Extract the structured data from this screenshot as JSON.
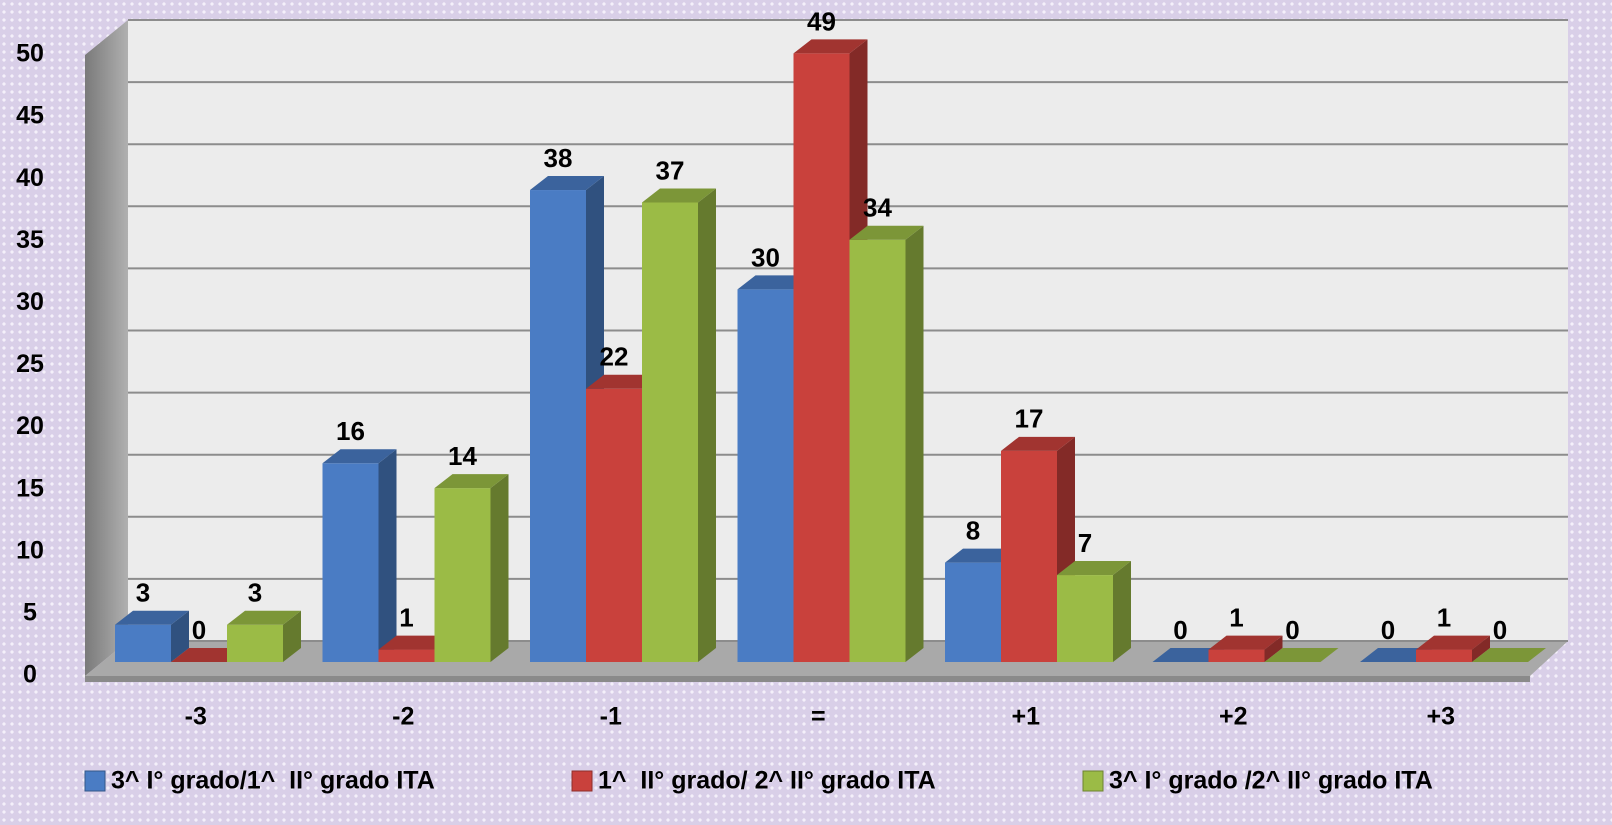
{
  "chart_data": {
    "type": "bar3d",
    "categories": [
      "-3",
      "-2",
      "-1",
      "=",
      "+1",
      "+2",
      "+3"
    ],
    "series": [
      {
        "name": "3^ I° grado/1^  II° grado ITA",
        "color": "#4a7cc4",
        "values": [
          3,
          16,
          38,
          30,
          8,
          0,
          0
        ]
      },
      {
        "name": "1^  II° grado/ 2^ II° grado ITA",
        "color": "#c9413c",
        "values": [
          0,
          1,
          22,
          49,
          17,
          1,
          1
        ]
      },
      {
        "name": "3^ I° grado /2^ II° grado ITA",
        "color": "#9bbb46",
        "values": [
          3,
          14,
          37,
          34,
          7,
          0,
          0
        ]
      }
    ],
    "ylim": [
      0,
      50
    ],
    "yticks": [
      0,
      5,
      10,
      15,
      20,
      25,
      30,
      35,
      40,
      45,
      50
    ],
    "grid": true,
    "legend": "bottom"
  }
}
